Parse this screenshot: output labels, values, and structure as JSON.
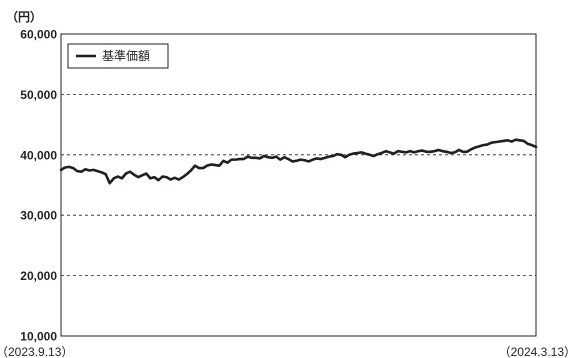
{
  "chart_data": {
    "type": "line",
    "ylabel": "（円）",
    "ylim": [
      10000,
      60000
    ],
    "yticks": [
      10000,
      20000,
      30000,
      40000,
      50000,
      60000
    ],
    "ytick_labels": [
      "10,000",
      "20,000",
      "30,000",
      "40,000",
      "50,000",
      "60,000"
    ],
    "x_start_label": "（2023.9.13）",
    "x_end_label": "（2024.3.13）",
    "grid": "horizontal dashed",
    "legend_position": "top-left",
    "line_color": "#231f20",
    "series": [
      {
        "name": "基準価額",
        "values": [
          37500,
          37900,
          38000,
          37800,
          37300,
          37200,
          37600,
          37400,
          37500,
          37300,
          37100,
          36800,
          35300,
          36100,
          36400,
          36100,
          36900,
          37200,
          36700,
          36300,
          36600,
          36900,
          36100,
          36300,
          35800,
          36400,
          36300,
          35900,
          36200,
          35900,
          36300,
          36800,
          37400,
          38200,
          37800,
          37800,
          38200,
          38400,
          38300,
          38200,
          39000,
          38700,
          39200,
          39200,
          39300,
          39300,
          39700,
          39500,
          39500,
          39400,
          39800,
          39600,
          39500,
          39700,
          39200,
          39600,
          39300,
          38900,
          39000,
          39200,
          39100,
          38900,
          39200,
          39400,
          39300,
          39500,
          39700,
          39800,
          40100,
          40000,
          39600,
          40000,
          40200,
          40300,
          40400,
          40200,
          40000,
          39800,
          40100,
          40300,
          40600,
          40400,
          40200,
          40600,
          40500,
          40400,
          40600,
          40400,
          40600,
          40700,
          40500,
          40500,
          40600,
          40800,
          40600,
          40500,
          40300,
          40400,
          40800,
          40500,
          40500,
          40900,
          41200,
          41400,
          41600,
          41700,
          42000,
          42100,
          42200,
          42300,
          42400,
          42200,
          42500,
          42400,
          42300,
          41800,
          41600,
          41300
        ]
      }
    ]
  }
}
